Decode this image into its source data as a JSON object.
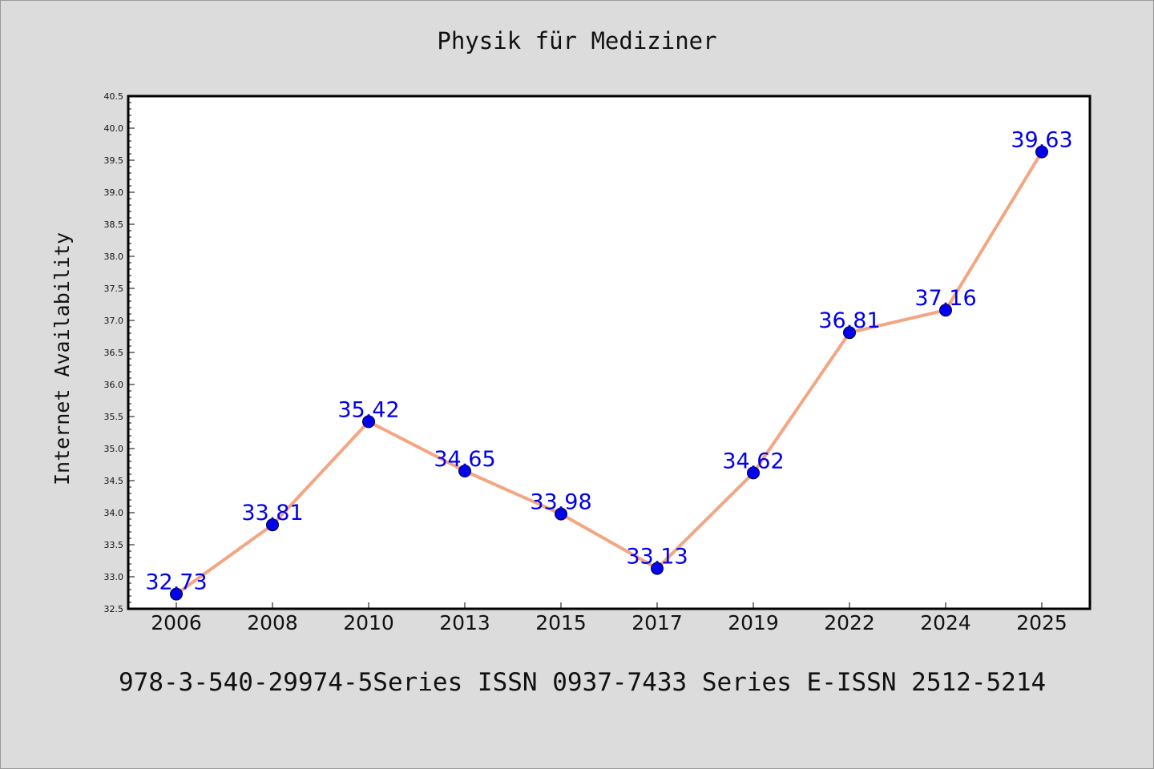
{
  "chart_data": {
    "type": "line",
    "title": "Physik für Mediziner",
    "xlabel": "",
    "ylabel": "Internet Availability",
    "categories": [
      "2006",
      "2008",
      "2010",
      "2013",
      "2015",
      "2017",
      "2019",
      "2022",
      "2024",
      "2025"
    ],
    "series": [
      {
        "values": [
          32.73,
          33.81,
          35.42,
          34.65,
          33.98,
          33.13,
          34.62,
          36.81,
          37.16,
          39.63
        ],
        "labels": [
          "32.73",
          "33.81",
          "35.42",
          "34.65",
          "33.98",
          "33.13",
          "34.62",
          "36.81",
          "37.16",
          "39.63"
        ],
        "line_color": "#f4a582",
        "marker_color": "#0000ee"
      }
    ],
    "ylim": [
      32.5,
      40.5
    ],
    "yticks": [
      "32.5",
      "33.0",
      "33.5",
      "34.0",
      "34.5",
      "35.0",
      "35.5",
      "36.0",
      "36.5",
      "37.0",
      "37.5",
      "38.0",
      "38.5",
      "39.0",
      "39.5",
      "40.0",
      "40.5"
    ],
    "grid": false,
    "legend": "none"
  },
  "footer": {
    "text": "978-3-540-29974-5Series ISSN 0937-7433 Series E-ISSN 2512-5214"
  }
}
